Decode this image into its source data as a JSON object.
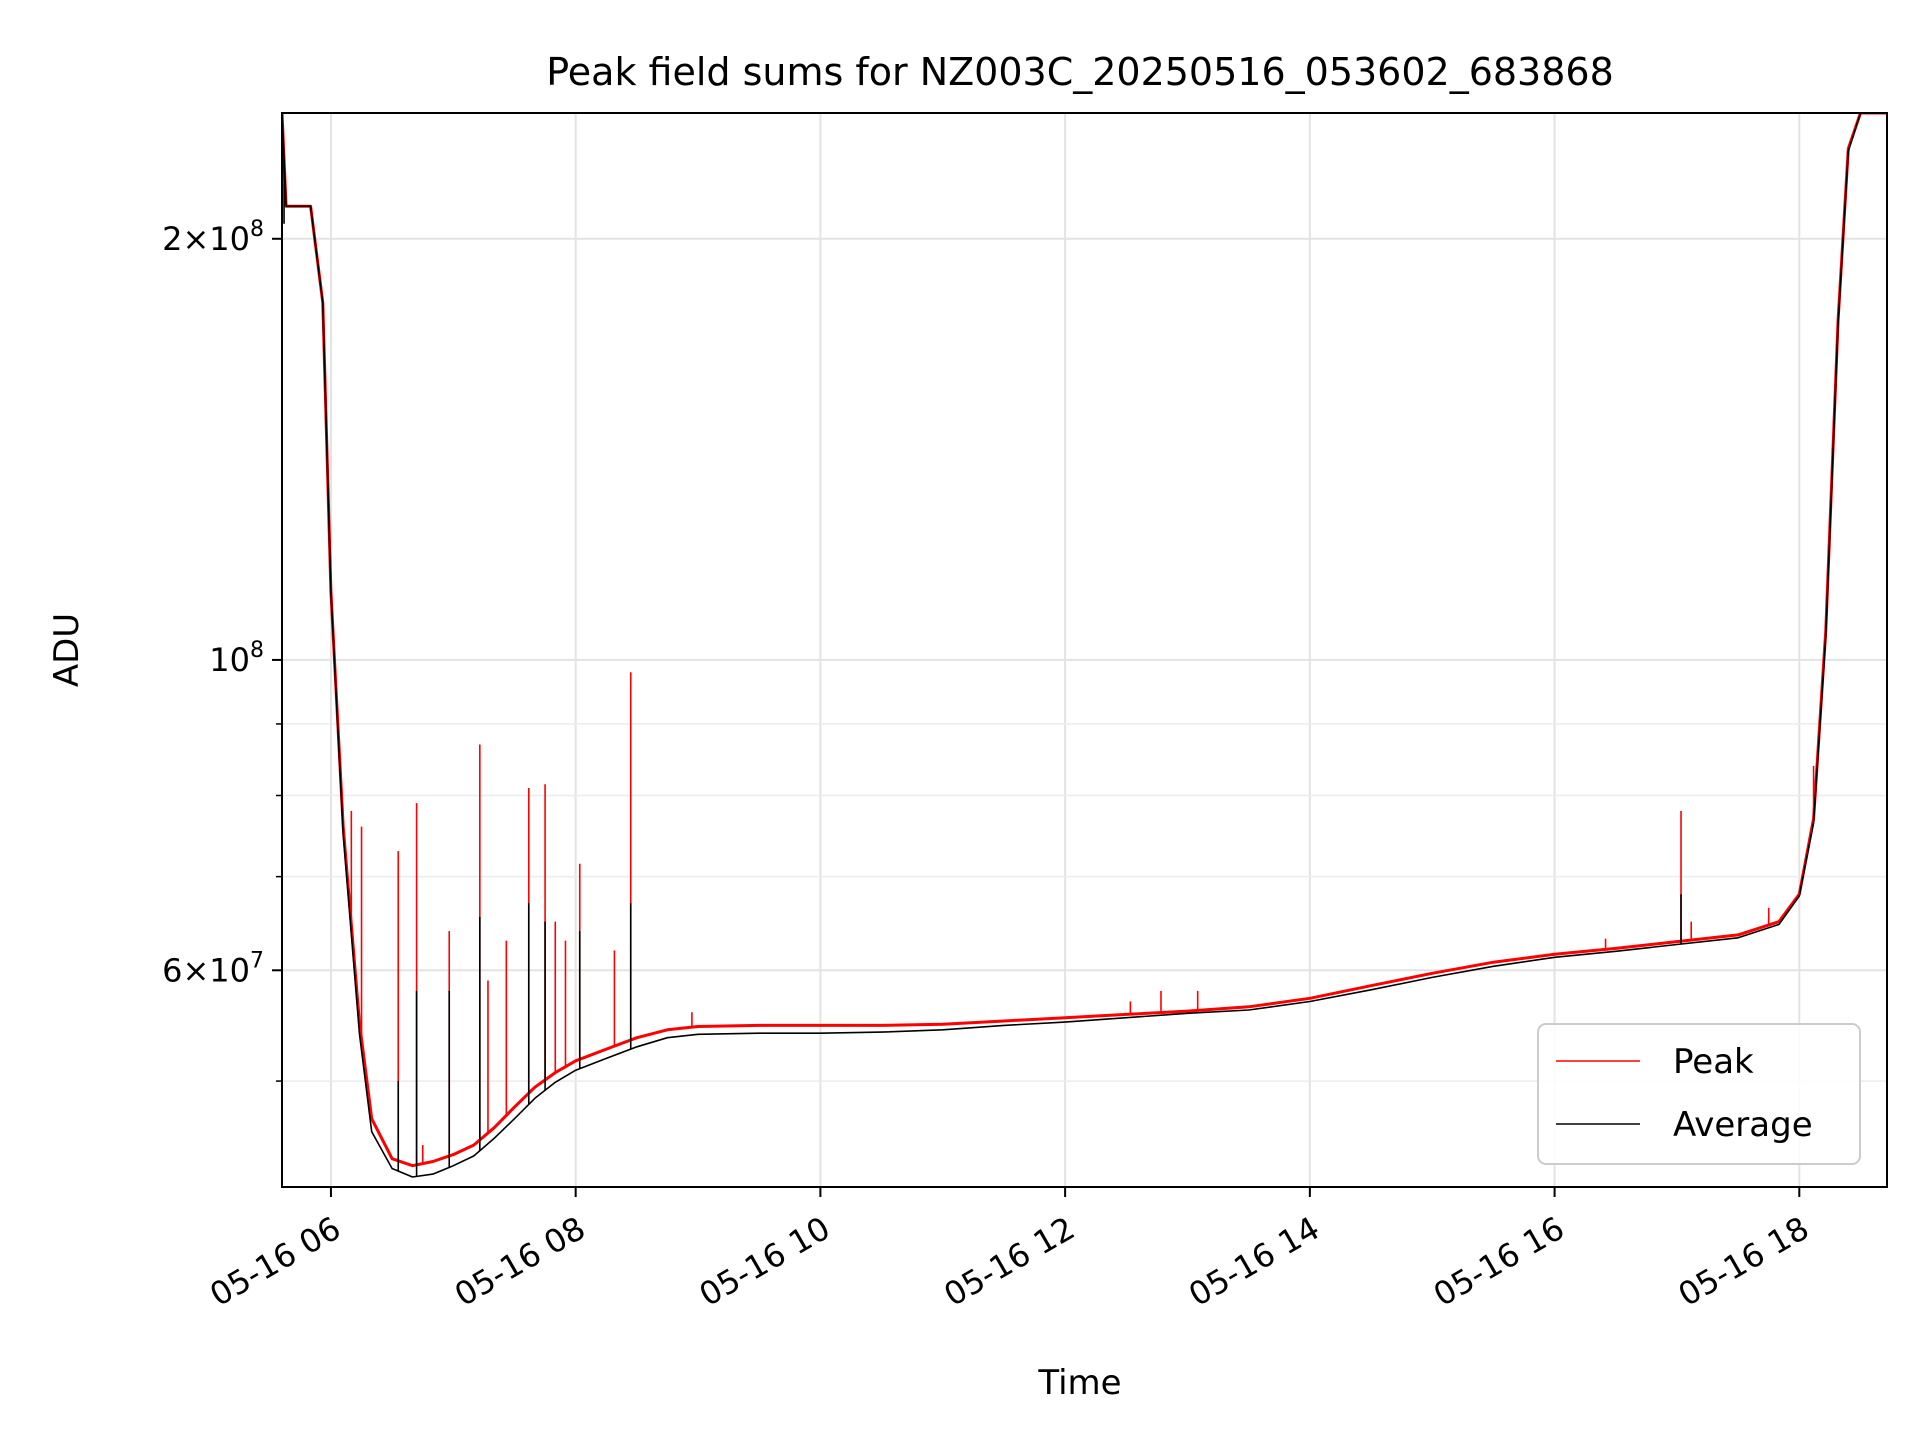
{
  "chart_data": {
    "type": "line",
    "title": "Peak field sums for NZ003C_20250516_053602_683868",
    "xlabel": "Time",
    "ylabel": "ADU",
    "y_scale": "log",
    "ylim": [
      42000000,
      246000000
    ],
    "xlim": [
      "05-16 05:36",
      "05-16 18:43"
    ],
    "grid": true,
    "legend_position": "lower-right",
    "x_ticks": [
      "05-16 06",
      "05-16 08",
      "05-16 10",
      "05-16 12",
      "05-16 14",
      "05-16 16",
      "05-16 18"
    ],
    "y_ticks_major": [
      {
        "value": 100000000,
        "base": "10",
        "exp": "8",
        "coef": ""
      },
      {
        "value": 200000000,
        "base": "10",
        "exp": "8",
        "coef": "2"
      },
      {
        "value": 60000000,
        "base": "10",
        "exp": "7",
        "coef": "6"
      }
    ],
    "y_ticks_minor": [
      50000000,
      70000000,
      80000000,
      90000000
    ],
    "series": [
      {
        "name": "Peak",
        "color": "#ff0000",
        "points": [
          [
            "05-16 05:36",
            246000000
          ],
          [
            "05-16 05:38",
            211000000
          ],
          [
            "05-16 05:50",
            211000000
          ],
          [
            "05-16 05:56",
            180000000
          ],
          [
            "05-16 06:00",
            112000000
          ],
          [
            "05-16 06:06",
            76000000
          ],
          [
            "05-16 06:14",
            55000000
          ],
          [
            "05-16 06:20",
            47000000
          ],
          [
            "05-16 06:30",
            44000000
          ],
          [
            "05-16 06:40",
            43500000
          ],
          [
            "05-16 06:50",
            43800000
          ],
          [
            "05-16 07:00",
            44300000
          ],
          [
            "05-16 07:10",
            45000000
          ],
          [
            "05-16 07:20",
            46300000
          ],
          [
            "05-16 07:30",
            47900000
          ],
          [
            "05-16 07:40",
            49500000
          ],
          [
            "05-16 07:50",
            50700000
          ],
          [
            "05-16 08:00",
            51700000
          ],
          [
            "05-16 08:15",
            52700000
          ],
          [
            "05-16 08:30",
            53700000
          ],
          [
            "05-16 08:45",
            54400000
          ],
          [
            "05-16 09:00",
            54700000
          ],
          [
            "05-16 09:30",
            54800000
          ],
          [
            "05-16 10:00",
            54800000
          ],
          [
            "05-16 10:30",
            54800000
          ],
          [
            "05-16 11:00",
            54900000
          ],
          [
            "05-16 11:30",
            55200000
          ],
          [
            "05-16 12:00",
            55500000
          ],
          [
            "05-16 12:30",
            55800000
          ],
          [
            "05-16 13:00",
            56100000
          ],
          [
            "05-16 13:30",
            56500000
          ],
          [
            "05-16 14:00",
            57300000
          ],
          [
            "05-16 14:30",
            58500000
          ],
          [
            "05-16 15:00",
            59700000
          ],
          [
            "05-16 15:30",
            60800000
          ],
          [
            "05-16 16:00",
            61600000
          ],
          [
            "05-16 16:30",
            62200000
          ],
          [
            "05-16 17:00",
            62900000
          ],
          [
            "05-16 17:30",
            63600000
          ],
          [
            "05-16 17:50",
            65000000
          ],
          [
            "05-16 18:00",
            68000000
          ],
          [
            "05-16 18:07",
            77000000
          ],
          [
            "05-16 18:13",
            105000000
          ],
          [
            "05-16 18:19",
            175000000
          ],
          [
            "05-16 18:24",
            232000000
          ],
          [
            "05-16 18:30",
            246000000
          ],
          [
            "05-16 18:43",
            246000000
          ]
        ],
        "spikes": [
          [
            "05-16 06:10",
            78000000
          ],
          [
            "05-16 06:15",
            76000000
          ],
          [
            "05-16 06:33",
            73000000
          ],
          [
            "05-16 06:42",
            79000000
          ],
          [
            "05-16 06:45",
            45000000
          ],
          [
            "05-16 06:58",
            64000000
          ],
          [
            "05-16 07:13",
            87000000
          ],
          [
            "05-16 07:17",
            59000000
          ],
          [
            "05-16 07:26",
            63000000
          ],
          [
            "05-16 07:37",
            81000000
          ],
          [
            "05-16 07:45",
            81500000
          ],
          [
            "05-16 07:50",
            65000000
          ],
          [
            "05-16 07:55",
            63000000
          ],
          [
            "05-16 08:02",
            71500000
          ],
          [
            "05-16 08:19",
            62000000
          ],
          [
            "05-16 08:27",
            98000000
          ],
          [
            "05-16 08:57",
            56000000
          ],
          [
            "05-16 12:32",
            57000000
          ],
          [
            "05-16 12:47",
            58000000
          ],
          [
            "05-16 13:05",
            58000000
          ],
          [
            "05-16 16:25",
            63200000
          ],
          [
            "05-16 17:02",
            78000000
          ],
          [
            "05-16 17:07",
            65000000
          ],
          [
            "05-16 17:45",
            66500000
          ],
          [
            "05-16 18:07",
            84000000
          ]
        ]
      },
      {
        "name": "Average",
        "color": "#000000",
        "points": [
          [
            "05-16 05:36",
            246000000
          ],
          [
            "05-16 05:38",
            211000000
          ],
          [
            "05-16 05:50",
            211000000
          ],
          [
            "05-16 05:56",
            180000000
          ],
          [
            "05-16 06:00",
            112000000
          ],
          [
            "05-16 06:06",
            75000000
          ],
          [
            "05-16 06:14",
            54000000
          ],
          [
            "05-16 06:20",
            46000000
          ],
          [
            "05-16 06:30",
            43300000
          ],
          [
            "05-16 06:40",
            42700000
          ],
          [
            "05-16 06:50",
            42900000
          ],
          [
            "05-16 07:00",
            43500000
          ],
          [
            "05-16 07:10",
            44200000
          ],
          [
            "05-16 07:20",
            45500000
          ],
          [
            "05-16 07:30",
            47000000
          ],
          [
            "05-16 07:40",
            48600000
          ],
          [
            "05-16 07:50",
            49900000
          ],
          [
            "05-16 08:00",
            50900000
          ],
          [
            "05-16 08:15",
            51900000
          ],
          [
            "05-16 08:30",
            52900000
          ],
          [
            "05-16 08:45",
            53700000
          ],
          [
            "05-16 09:00",
            54000000
          ],
          [
            "05-16 09:30",
            54100000
          ],
          [
            "05-16 10:00",
            54100000
          ],
          [
            "05-16 10:30",
            54200000
          ],
          [
            "05-16 11:00",
            54400000
          ],
          [
            "05-16 11:30",
            54800000
          ],
          [
            "05-16 12:00",
            55100000
          ],
          [
            "05-16 12:30",
            55500000
          ],
          [
            "05-16 13:00",
            55900000
          ],
          [
            "05-16 13:30",
            56200000
          ],
          [
            "05-16 14:00",
            57000000
          ],
          [
            "05-16 14:30",
            58100000
          ],
          [
            "05-16 15:00",
            59300000
          ],
          [
            "05-16 15:30",
            60400000
          ],
          [
            "05-16 16:00",
            61300000
          ],
          [
            "05-16 16:30",
            61900000
          ],
          [
            "05-16 17:00",
            62600000
          ],
          [
            "05-16 17:30",
            63300000
          ],
          [
            "05-16 17:50",
            64700000
          ],
          [
            "05-16 18:00",
            67800000
          ],
          [
            "05-16 18:07",
            76500000
          ],
          [
            "05-16 18:13",
            104000000
          ],
          [
            "05-16 18:19",
            174000000
          ],
          [
            "05-16 18:24",
            231000000
          ],
          [
            "05-16 18:30",
            246000000
          ],
          [
            "05-16 18:43",
            246000000
          ]
        ],
        "spikes": [
          [
            "05-16 05:37",
            205000000
          ],
          [
            "05-16 06:33",
            50000000
          ],
          [
            "05-16 06:42",
            58000000
          ],
          [
            "05-16 06:58",
            58000000
          ],
          [
            "05-16 07:13",
            65500000
          ],
          [
            "05-16 07:37",
            67000000
          ],
          [
            "05-16 07:45",
            65000000
          ],
          [
            "05-16 08:02",
            64000000
          ],
          [
            "05-16 08:27",
            67000000
          ],
          [
            "05-16 17:02",
            68000000
          ]
        ]
      }
    ]
  }
}
